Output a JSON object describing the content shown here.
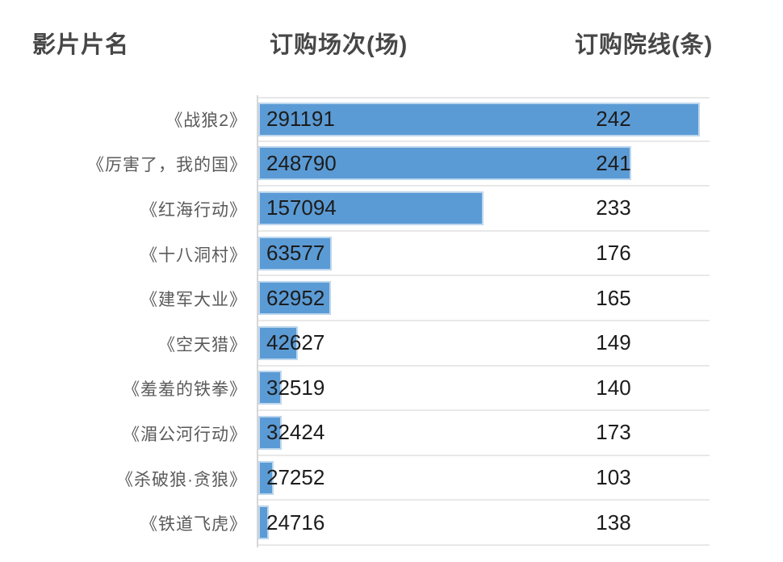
{
  "header": {
    "columns": [
      {
        "label": "影片片名"
      },
      {
        "label": "订购场次(场)"
      },
      {
        "label": "订购院线(条)"
      }
    ]
  },
  "chart_data": {
    "type": "bar",
    "orientation": "horizontal",
    "title": "",
    "categories": [
      "《战狼2》",
      "《厉害了，我的国》",
      "《红海行动》",
      "《十八洞村》",
      "《建军大业》",
      "《空天猎》",
      "《羞羞的铁拳》",
      "《湄公河行动》",
      "《杀破狼·贪狼》",
      "《铁道飞虎》"
    ],
    "series": [
      {
        "name": "订购场次(场)",
        "values": [
          291191,
          248790,
          157094,
          63577,
          62952,
          42627,
          32519,
          32424,
          27252,
          24716
        ]
      },
      {
        "name": "订购院线(条)",
        "values": [
          242,
          241,
          233,
          176,
          165,
          149,
          140,
          173,
          103,
          138
        ]
      }
    ],
    "layout": {
      "x_axis_min": 20000,
      "x_axis_max": 300000,
      "grid": "horizontal-row-separators",
      "legend": "none",
      "value_labels": "at-bar-start",
      "bar_color": "#5b9bd5"
    }
  },
  "colors": {
    "bar": "#5b9bd5",
    "bar_edge": "#bdd7ee",
    "header_text": "#474747",
    "label_text": "#5a5a5a",
    "value_text": "#1c1c1c",
    "separator": "#e8e8e8",
    "axis_line": "#d6d6d6",
    "background": "#ffffff"
  }
}
